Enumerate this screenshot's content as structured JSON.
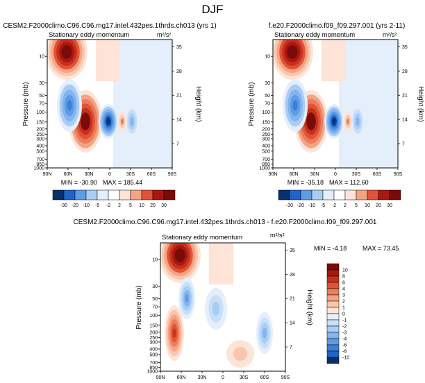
{
  "figure_title": "DJF",
  "chart_data": [
    {
      "type": "heatmap",
      "title": "CESM2.F2000climo.C96.C96.mg17.intel.432pes.1thrds.ch013 (yrs 1)",
      "subtitle": "Stationary eddy momentum",
      "units": "m²/s²",
      "ylabel": "Pressure (mb)",
      "ylabel_right": "Height (km)",
      "x_ticks": [
        "90N",
        "60N",
        "30N",
        "0",
        "30S",
        "60S",
        "90S"
      ],
      "y_ticks": [
        "10",
        "30",
        "50",
        "70",
        "100",
        "150",
        "200",
        "250",
        "300",
        "400",
        "500",
        "700",
        "850",
        "1000"
      ],
      "height_ticks": [
        "35",
        "28",
        "21",
        "14",
        "7"
      ],
      "min_label": "MIN = -30.90",
      "max_label": "MAX = 185.44",
      "min": -30.9,
      "max": 185.44,
      "colorbar_levels": [
        "-30",
        "-20",
        "-10",
        "-5",
        "-2",
        "2",
        "5",
        "10",
        "20",
        "30"
      ],
      "features": [
        {
          "lat": 60,
          "p": 10,
          "value": 185,
          "label": "stratospheric high-latitude maximum"
        },
        {
          "lat": 25,
          "p": 200,
          "value": 40,
          "label": "subtropical upper-troposphere positive"
        },
        {
          "lat": 0,
          "p": 150,
          "value": -30,
          "label": "equatorial negative"
        },
        {
          "lat": 60,
          "p": 70,
          "value": -20,
          "label": "high-latitude negative"
        }
      ]
    },
    {
      "type": "heatmap",
      "title": "f.e20.F2000climo.f09_f09.297.001 (yrs 2-11)",
      "subtitle": "Stationary eddy momentum",
      "units": "m²/s²",
      "ylabel": "Pressure (mb)",
      "ylabel_right": "Height (km)",
      "x_ticks": [
        "90N",
        "60N",
        "30N",
        "0",
        "30S",
        "60S",
        "90S"
      ],
      "y_ticks": [
        "10",
        "30",
        "50",
        "70",
        "100",
        "150",
        "200",
        "250",
        "300",
        "400",
        "500",
        "700",
        "850",
        "1000"
      ],
      "height_ticks": [
        "35",
        "28",
        "21",
        "14",
        "7"
      ],
      "min_label": "MIN = -35.18",
      "max_label": "MAX = 112.60",
      "min": -35.18,
      "max": 112.6,
      "colorbar_levels": [
        "-30",
        "-20",
        "-10",
        "-5",
        "-2",
        "2",
        "5",
        "10",
        "20",
        "30"
      ],
      "features": [
        {
          "lat": 60,
          "p": 10,
          "value": 112,
          "label": "stratospheric high-latitude maximum"
        },
        {
          "lat": 25,
          "p": 200,
          "value": 35,
          "label": "subtropical upper-troposphere positive"
        },
        {
          "lat": 0,
          "p": 150,
          "value": -35,
          "label": "equatorial negative"
        },
        {
          "lat": 60,
          "p": 70,
          "value": -20,
          "label": "high-latitude negative"
        }
      ]
    },
    {
      "type": "heatmap",
      "title": "CESM2.F2000climo.C96.C96.mg17.intel.432pes.1thrds.ch013 - f.e20.F2000climo.f09_f09.297.001",
      "subtitle": "Stationary eddy momentum",
      "units": "m²/s²",
      "ylabel": "Pressure (mb)",
      "ylabel_right": "Height (km)",
      "x_ticks": [
        "90N",
        "60N",
        "30N",
        "0",
        "30S",
        "60S",
        "90S"
      ],
      "y_ticks": [
        "10",
        "30",
        "50",
        "70",
        "100",
        "150",
        "200",
        "250",
        "300",
        "400",
        "500",
        "700",
        "850",
        "1000"
      ],
      "height_ticks": [
        "35",
        "28",
        "21",
        "14",
        "7"
      ],
      "min_label": "MIN = -4.18",
      "max_label": "MAX = 73.45",
      "min": -4.18,
      "max": 73.45,
      "colorbar_levels": [
        "10",
        "8",
        "6",
        "4",
        "3",
        "2",
        "1",
        "0",
        "-1",
        "-2",
        "-3",
        "-4",
        "-6",
        "-8",
        "-10"
      ],
      "features": [
        {
          "lat": 60,
          "p": 10,
          "value": 73,
          "label": "stratospheric high-latitude maximum"
        },
        {
          "lat": 60,
          "p": 250,
          "value": 4,
          "label": "high-latitude tropospheric positive"
        },
        {
          "lat": 50,
          "p": 70,
          "value": -4,
          "label": "high-latitude negative"
        },
        {
          "lat": 60,
          "p": 300,
          "value": -3,
          "label": "southern negative"
        }
      ]
    }
  ],
  "colors": {
    "diverging": [
      "#08306b",
      "#0d47a1",
      "#1f64c8",
      "#3a7fd9",
      "#5d9be6",
      "#82b4ee",
      "#a8cdf4",
      "#c8dff8",
      "#e4effb",
      "#ffffff",
      "#fde4d6",
      "#f9c7ad",
      "#f4a384",
      "#ec7c5b",
      "#de5435",
      "#c9301c",
      "#a81812",
      "#7a0b08"
    ]
  }
}
